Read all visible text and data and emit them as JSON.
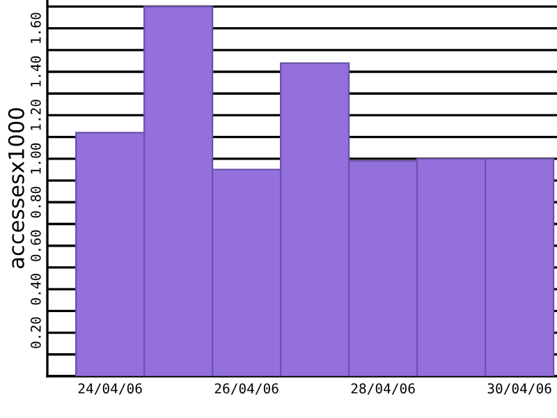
{
  "chart_data": {
    "type": "bar",
    "ylabel": "accessesx1000",
    "categories": [
      "24/04/06",
      null,
      "26/04/06",
      null,
      "28/04/06",
      null,
      "30/04/06"
    ],
    "values": [
      1.12,
      1.7,
      0.95,
      1.44,
      0.99,
      1.0,
      1.0
    ],
    "color": "#9370db",
    "ylim": [
      0,
      1.73
    ],
    "yticks": [
      {
        "value": 0,
        "label": null
      },
      {
        "value": 0.1,
        "label": null
      },
      {
        "value": 0.2,
        "label": "0.20"
      },
      {
        "value": 0.3,
        "label": null
      },
      {
        "value": 0.4,
        "label": "0.40"
      },
      {
        "value": 0.5,
        "label": null
      },
      {
        "value": 0.6,
        "label": "0.60"
      },
      {
        "value": 0.7,
        "label": null
      },
      {
        "value": 0.8,
        "label": "0.80"
      },
      {
        "value": 0.9,
        "label": null
      },
      {
        "value": 1.0,
        "label": "1.00"
      },
      {
        "value": 1.1,
        "label": null
      },
      {
        "value": 1.2,
        "label": "1.20"
      },
      {
        "value": 1.3,
        "label": null
      },
      {
        "value": 1.4,
        "label": "1.40"
      },
      {
        "value": 1.5,
        "label": null
      },
      {
        "value": 1.6,
        "label": "1.60"
      },
      {
        "value": 1.7,
        "label": null
      }
    ],
    "grid": "y"
  }
}
